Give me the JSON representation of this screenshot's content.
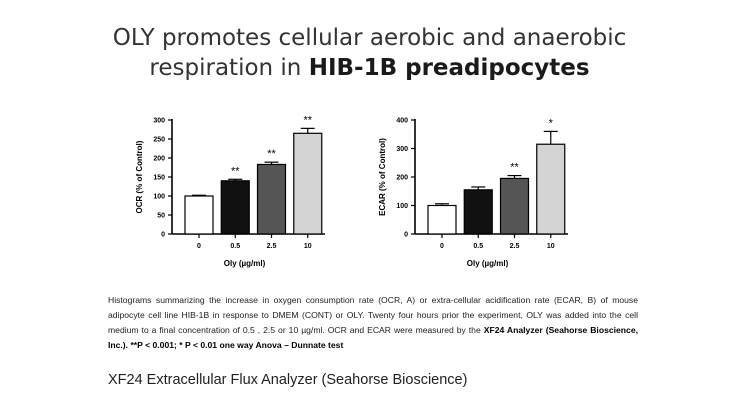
{
  "slide": {
    "title_line1": "OLY promotes cellular aerobic and anaerobic",
    "title_line2_prefix": "respiration in ",
    "title_line2_bold": "HIB-1B preadipocytes",
    "caption_part1": "Histograms summarizing the increase in  oxygen consumption rate (OCR, A) or extra-cellular acidification rate (ECAR, B) of mouse adipocyte cell line HIB-1B in response to DMEM (CONT) or OLY. Twenty four hours prior the experiment, OLY was added into the cell medium to a final concentration of 0.5 , 2.5 or 10 µg/ml.  OCR and ECAR were measured by the ",
    "caption_bold1": "XF24 Analyzer (Seahorse Bioscience, Inc.). **P < 0.001; * P < 0.01 one way Anova – Dunnate test",
    "footer": "XF24 Extracellular Flux Analyzer (Seahorse Bioscience)"
  },
  "chart_data": [
    {
      "type": "bar",
      "title": "",
      "xlabel": "Oly (µg/ml)",
      "ylabel": "OCR (% of Control)",
      "ylim": [
        0,
        300
      ],
      "yticks": [
        0,
        50,
        100,
        150,
        200,
        250,
        300
      ],
      "categories": [
        "0",
        "0.5",
        "2.5",
        "10"
      ],
      "values": [
        100,
        140,
        183,
        265
      ],
      "errors": [
        2,
        4,
        6,
        13
      ],
      "significance": [
        "",
        "**",
        "**",
        "**"
      ],
      "bar_colors": [
        "#ffffff",
        "#111111",
        "#555555",
        "#d4d4d4"
      ],
      "grid": false
    },
    {
      "type": "bar",
      "title": "",
      "xlabel": "Oly (µg/ml)",
      "ylabel": "ECAR (% of Control)",
      "ylim": [
        0,
        400
      ],
      "yticks": [
        0,
        100,
        200,
        300,
        400
      ],
      "categories": [
        "0",
        "0.5",
        "2.5",
        "10"
      ],
      "values": [
        100,
        155,
        195,
        315
      ],
      "errors": [
        6,
        10,
        10,
        45
      ],
      "significance": [
        "",
        "",
        "**",
        "*"
      ],
      "bar_colors": [
        "#ffffff",
        "#111111",
        "#555555",
        "#d4d4d4"
      ],
      "grid": false
    }
  ]
}
